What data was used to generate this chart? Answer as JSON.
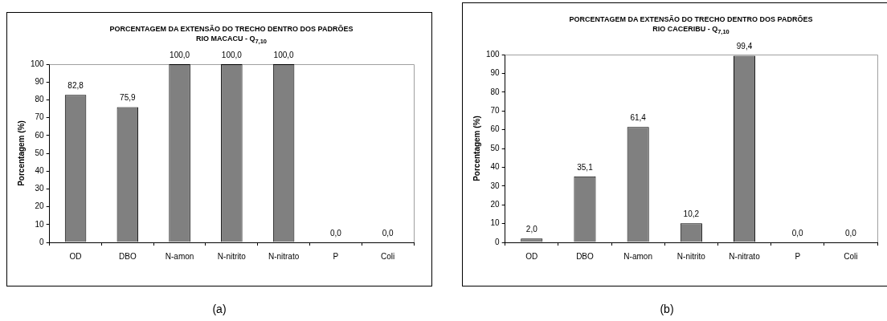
{
  "chart_data": [
    {
      "type": "bar",
      "title": "PORCENTAGEM DA EXTENSÃO DO TRECHO DENTRO DOS PADRÕES",
      "subtitle": "RIO MACACU - Q$_{7,10}$",
      "ylabel": "Porcentagem (%)",
      "categories": [
        "OD",
        "DBO",
        "N-amon",
        "N-nitrito",
        "N-nitrato",
        "P",
        "Coli"
      ],
      "values": [
        82.8,
        75.9,
        100,
        100,
        100,
        0,
        0
      ],
      "value_labels": [
        "82,8",
        "75,9",
        "100,0",
        "100,0",
        "100,0",
        "0,0",
        "0,0"
      ],
      "color": "#808080",
      "ylim": [
        0,
        100
      ],
      "yticks": [
        0,
        10,
        20,
        30,
        40,
        50,
        60,
        70,
        80,
        90,
        100
      ],
      "grid": false,
      "legend": false,
      "annotations": [
        "(a)"
      ]
    },
    {
      "type": "bar",
      "title": "PORCENTAGEM  DA EXTENSÃO DO TRECHO DENTRO DOS PADRÕES",
      "subtitle": "RIO CACERIBU - Q$_{7,10}$",
      "ylabel": "Porcentagem (%)",
      "categories": [
        "OD",
        "DBO",
        "N-amon",
        "N-nitrito",
        "N-nitrato",
        "P",
        "Coli"
      ],
      "values": [
        2.0,
        35.1,
        61.4,
        10.2,
        99.4,
        0,
        0
      ],
      "value_labels": [
        "2,0",
        "35,1",
        "61,4",
        "10,2",
        "99,4",
        "0,0",
        "0,0"
      ],
      "color": "#808080",
      "ylim": [
        0,
        100
      ],
      "yticks": [
        0,
        10,
        20,
        30,
        40,
        50,
        60,
        70,
        80,
        90,
        100
      ],
      "grid": false,
      "legend": false,
      "annotations": [
        "(b)"
      ]
    }
  ]
}
